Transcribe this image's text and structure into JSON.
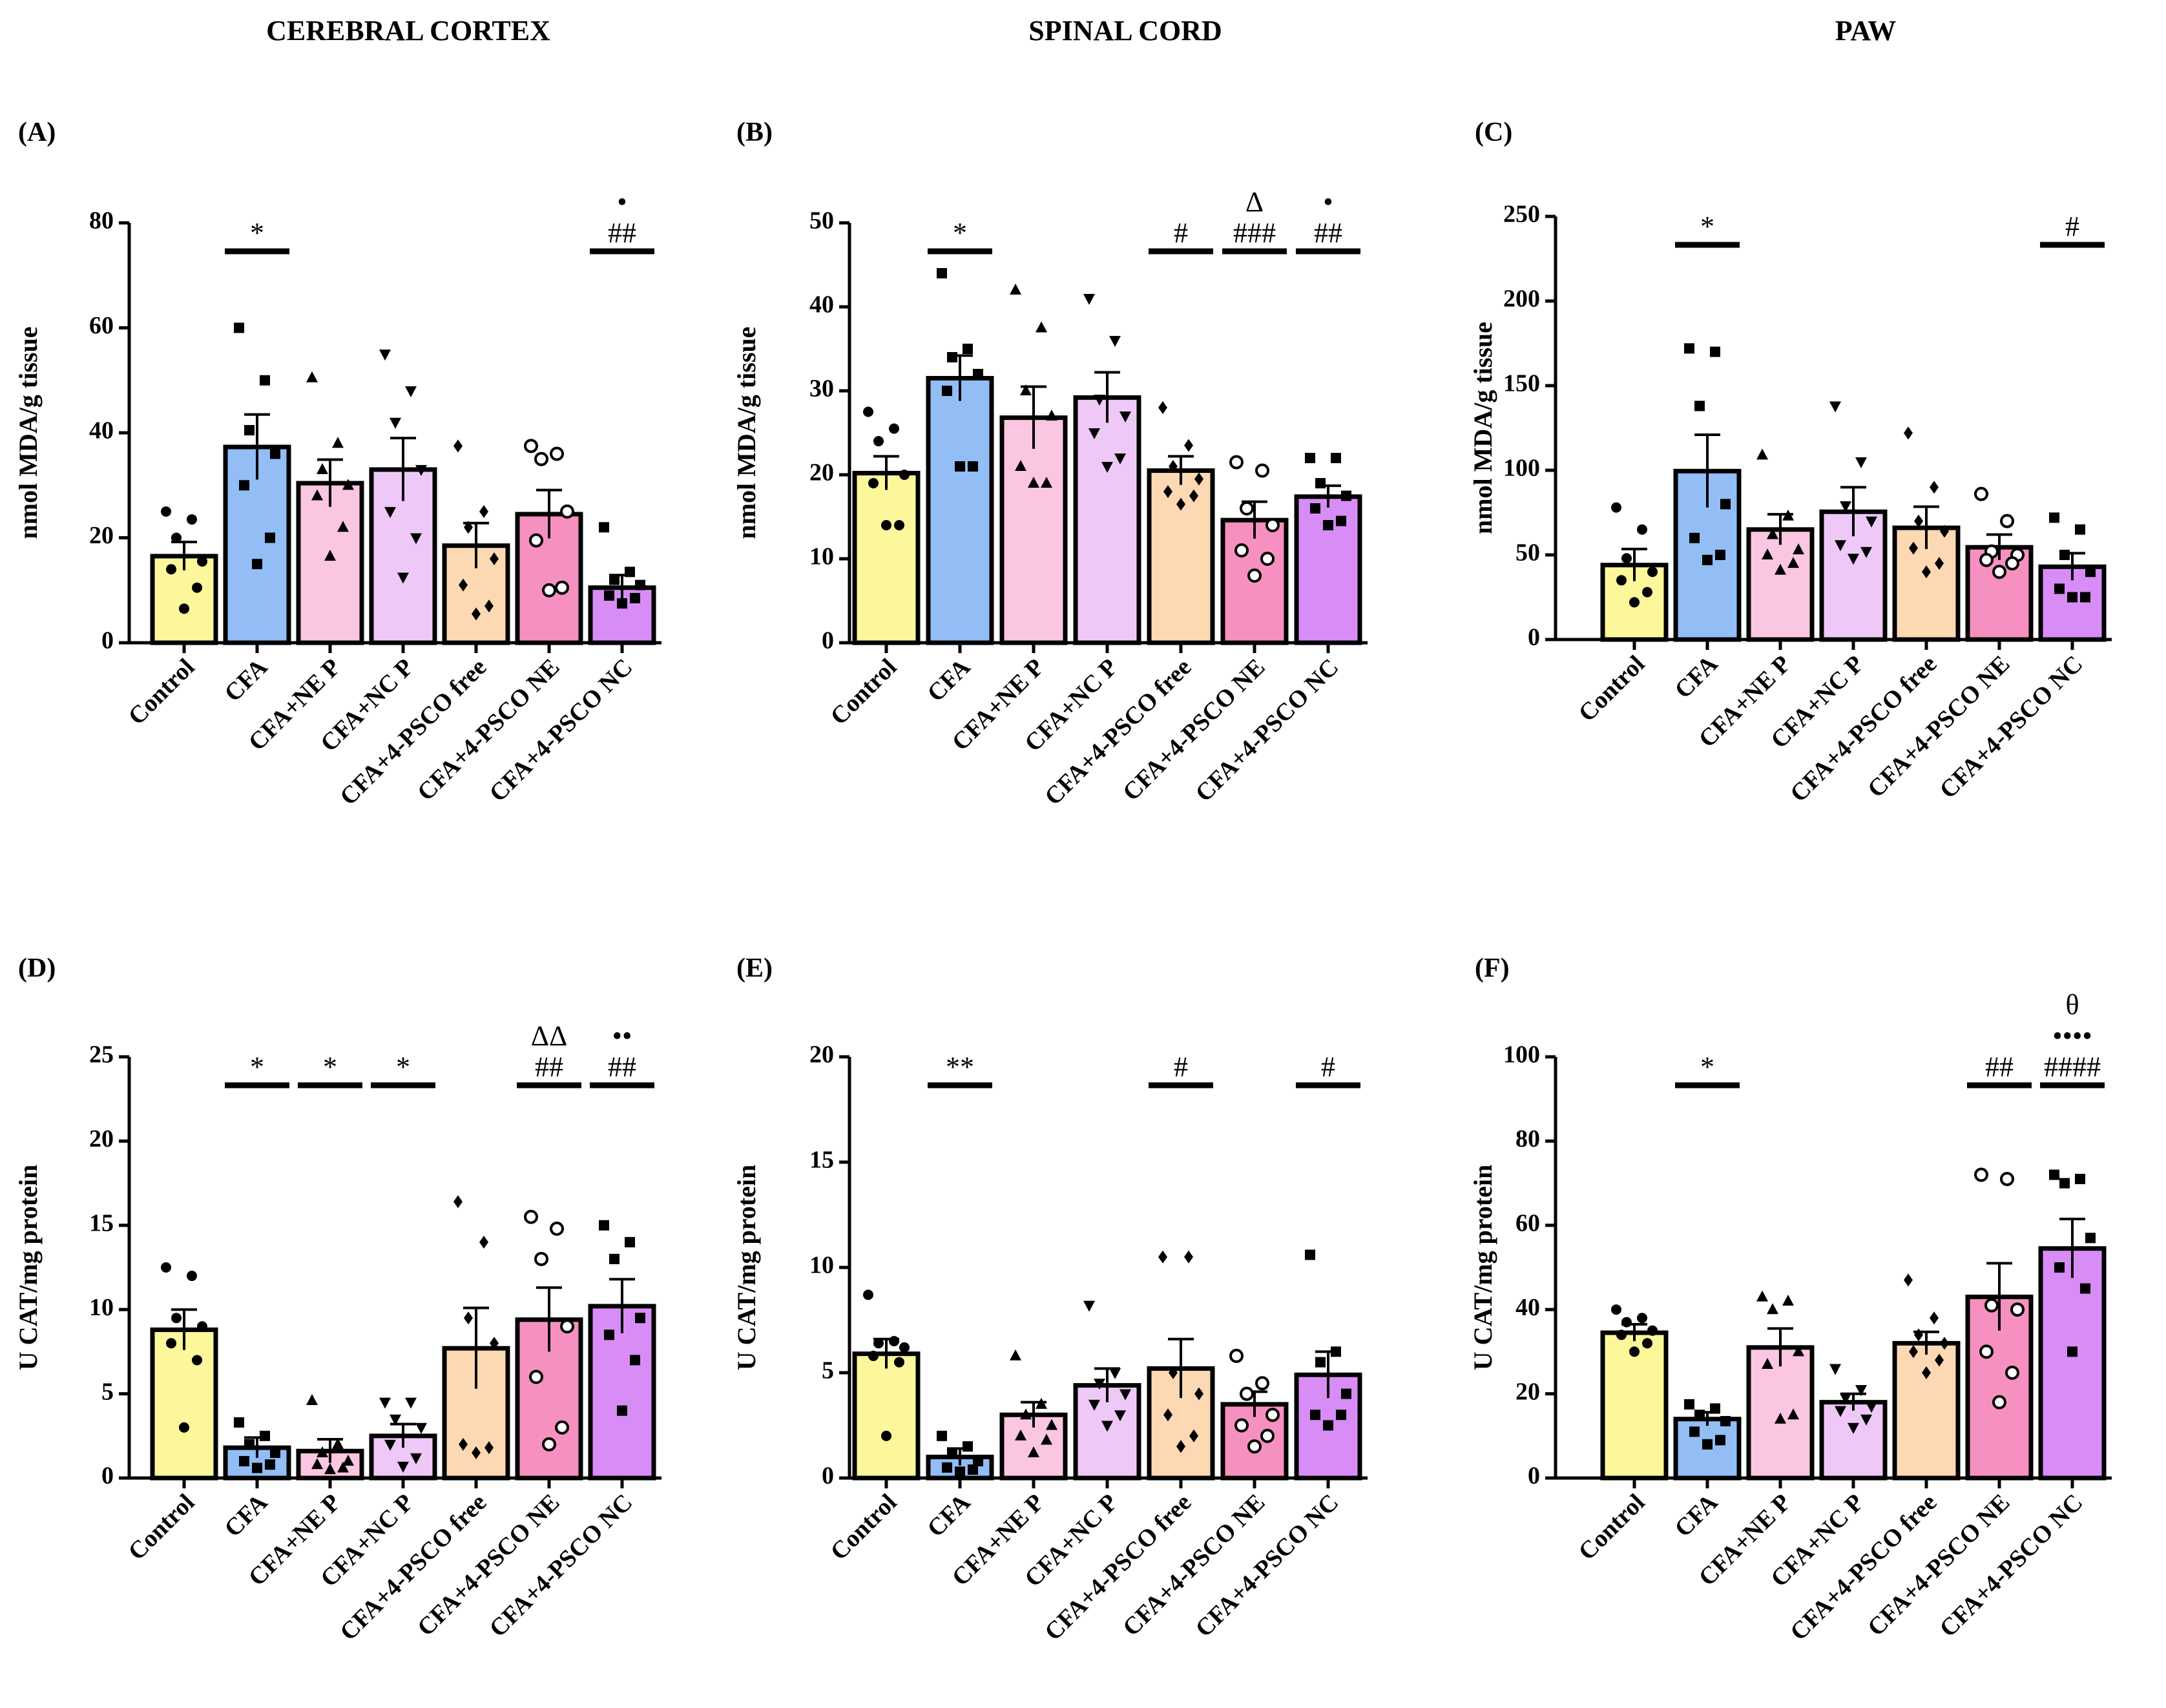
{
  "column_titles": [
    "CEREBRAL CORTEX",
    "SPINAL CORD",
    "PAW"
  ],
  "colors": [
    "#fbf79a",
    "#92bdf5",
    "#fbc6e1",
    "#eec9f7",
    "#fcd8b3",
    "#f690c0",
    "#d88cf5"
  ],
  "chart_data": [
    {
      "type": "bar",
      "panel": "(A)",
      "column": "CEREBRAL CORTEX",
      "ylabel": "nmol MDA/g tissue",
      "ylim": [
        0,
        80
      ],
      "yticks": [
        0,
        20,
        40,
        60,
        80
      ],
      "categories": [
        "Control",
        "CFA",
        "CFA+NE P",
        "CFA+NC P",
        "CFA+4-PSCO free",
        "CFA+4-PSCO NE",
        "CFA+4-PSCO NC"
      ],
      "values": [
        16.5,
        37.3,
        30.4,
        33.0,
        18.5,
        24.5,
        10.5
      ],
      "sem": [
        2.7,
        6.2,
        4.5,
        6.0,
        4.3,
        4.6,
        2.4
      ],
      "markers": [
        "circle",
        "square",
        "triangle",
        "tri-down",
        "diamond",
        "open-circle",
        "square"
      ],
      "points": [
        [
          25.0,
          23.5,
          20.0,
          15.5,
          14.0,
          10.5,
          6.5
        ],
        [
          60.0,
          50.0,
          40.5,
          36.0,
          30.0,
          20.0,
          15.0
        ],
        [
          50.5,
          38.0,
          33.0,
          30.0,
          28.0,
          22.0,
          16.5
        ],
        [
          55.0,
          48.0,
          42.0,
          33.0,
          25.0,
          20.0,
          12.5
        ],
        [
          37.5,
          25.0,
          22.0,
          16.0,
          11.0,
          7.0,
          5.5
        ],
        [
          37.5,
          36.0,
          35.0,
          25.0,
          19.5,
          10.5,
          10.0
        ],
        [
          22.0,
          13.5,
          12.0,
          11.0,
          9.0,
          8.5,
          7.5
        ]
      ],
      "sig": [
        {
          "index": 1,
          "labels": [
            "*"
          ],
          "line": true
        },
        {
          "index": 6,
          "labels": [
            "•",
            "##"
          ],
          "line": true
        }
      ]
    },
    {
      "type": "bar",
      "panel": "(B)",
      "column": "SPINAL CORD",
      "ylabel": "nmol MDA/g tissue",
      "ylim": [
        0,
        50
      ],
      "yticks": [
        0,
        10,
        20,
        30,
        40,
        50
      ],
      "categories": [
        "Control",
        "CFA",
        "CFA+NE P",
        "CFA+NC P",
        "CFA+4-PSCO free",
        "CFA+4-PSCO NE",
        "CFA+4-PSCO NC"
      ],
      "values": [
        20.2,
        31.5,
        26.8,
        29.2,
        20.5,
        14.6,
        17.4
      ],
      "sem": [
        2.0,
        2.7,
        3.7,
        3.0,
        1.7,
        2.2,
        1.3
      ],
      "markers": [
        "circle",
        "square",
        "triangle",
        "tri-down",
        "diamond",
        "open-circle",
        "square"
      ],
      "points": [
        [
          27.5,
          25.5,
          24.0,
          20.0,
          19.0,
          14.0,
          14.0
        ],
        [
          44.0,
          35.0,
          34.0,
          32.0,
          30.0,
          21.0,
          21.0
        ],
        [
          42.0,
          37.5,
          30.0,
          27.0,
          21.0,
          19.0,
          19.0
        ],
        [
          41.0,
          36.0,
          29.0,
          27.0,
          25.0,
          22.0,
          21.0
        ],
        [
          28.0,
          23.5,
          21.0,
          19.5,
          18.0,
          17.5,
          16.5
        ],
        [
          21.5,
          20.5,
          16.0,
          14.0,
          11.0,
          10.0,
          8.0
        ],
        [
          22.0,
          22.0,
          19.0,
          17.5,
          16.0,
          14.5,
          14.0
        ]
      ],
      "sig": [
        {
          "index": 1,
          "labels": [
            "*"
          ],
          "line": true
        },
        {
          "index": 4,
          "labels": [
            "#"
          ],
          "line": true
        },
        {
          "index": 5,
          "labels": [
            "Δ",
            "###"
          ],
          "line": true
        },
        {
          "index": 6,
          "labels": [
            "•",
            "##"
          ],
          "line": true
        }
      ]
    },
    {
      "type": "bar",
      "panel": "(C)",
      "column": "PAW",
      "ylabel": "nmol MDA/g tissue",
      "ylim": [
        0,
        250
      ],
      "yticks": [
        0,
        50,
        100,
        150,
        200,
        250
      ],
      "categories": [
        "Control",
        "CFA",
        "CFA+NE P",
        "CFA+NC P",
        "CFA+4-PSCO free",
        "CFA+4-PSCO NE",
        "CFA+4-PSCO NC"
      ],
      "values": [
        44.0,
        99.5,
        65.0,
        75.5,
        66.0,
        54.5,
        43.0
      ],
      "sem": [
        9.5,
        21.5,
        9.0,
        14.5,
        12.5,
        7.5,
        8.0
      ],
      "markers": [
        "circle",
        "square",
        "triangle",
        "tri-down",
        "diamond",
        "open-circle",
        "square"
      ],
      "points": [
        [
          78.0,
          65.0,
          48.0,
          40.0,
          35.0,
          28.0,
          22.0
        ],
        [
          172.0,
          170.0,
          138.0,
          80.0,
          60.0,
          50.0,
          47.0
        ],
        [
          109.0,
          73.0,
          62.0,
          53.0,
          50.0,
          45.0,
          41.0
        ],
        [
          138.0,
          105.0,
          79.0,
          70.0,
          56.0,
          52.0,
          48.0
        ],
        [
          122.0,
          90.0,
          70.0,
          64.0,
          54.0,
          45.0,
          40.0
        ],
        [
          86.0,
          70.0,
          52.0,
          50.0,
          47.0,
          45.0,
          40.0
        ],
        [
          72.0,
          65.0,
          50.0,
          40.0,
          30.0,
          25.0,
          25.0
        ]
      ],
      "sig": [
        {
          "index": 1,
          "labels": [
            "*"
          ],
          "line": true
        },
        {
          "index": 6,
          "labels": [
            "#"
          ],
          "line": true
        }
      ]
    },
    {
      "type": "bar",
      "panel": "(D)",
      "column": "CEREBRAL CORTEX",
      "ylabel": "U CAT/mg protein",
      "ylim": [
        0,
        25
      ],
      "yticks": [
        0,
        5,
        10,
        15,
        20,
        25
      ],
      "categories": [
        "Control",
        "CFA",
        "CFA+NE P",
        "CFA+NC P",
        "CFA+4-PSCO free",
        "CFA+4-PSCO NE",
        "CFA+4-PSCO NC"
      ],
      "values": [
        8.8,
        1.8,
        1.6,
        2.5,
        7.7,
        9.4,
        10.2
      ],
      "sem": [
        1.2,
        0.6,
        0.7,
        0.7,
        2.4,
        1.9,
        1.6
      ],
      "markers": [
        "circle",
        "square",
        "triangle",
        "tri-down",
        "diamond",
        "open-circle",
        "square"
      ],
      "points": [
        [
          12.5,
          12.0,
          9.5,
          9.0,
          8.0,
          7.0,
          3.0
        ],
        [
          3.3,
          2.5,
          2.0,
          1.5,
          1.0,
          0.8,
          0.6
        ],
        [
          4.6,
          2.0,
          1.5,
          1.0,
          0.8,
          0.6,
          0.5
        ],
        [
          4.5,
          4.5,
          3.5,
          3.0,
          2.0,
          1.2,
          0.7
        ],
        [
          16.4,
          14.0,
          9.5,
          8.0,
          2.0,
          1.8,
          1.5
        ],
        [
          15.5,
          14.8,
          13.0,
          9.0,
          6.0,
          3.0,
          2.0
        ],
        [
          15.0,
          14.0,
          13.0,
          9.5,
          8.5,
          7.0,
          4.0
        ]
      ],
      "sig": [
        {
          "index": 1,
          "labels": [
            "*"
          ],
          "line": true
        },
        {
          "index": 2,
          "labels": [
            "*"
          ],
          "line": true
        },
        {
          "index": 3,
          "labels": [
            "*"
          ],
          "line": true
        },
        {
          "index": 5,
          "labels": [
            "ΔΔ",
            "##"
          ],
          "line": true
        },
        {
          "index": 6,
          "labels": [
            "••",
            "##"
          ],
          "line": true
        }
      ]
    },
    {
      "type": "bar",
      "panel": "(E)",
      "column": "SPINAL CORD",
      "ylabel": "U CAT/mg protein",
      "ylim": [
        0,
        20
      ],
      "yticks": [
        0,
        5,
        10,
        15,
        20
      ],
      "categories": [
        "Control",
        "CFA",
        "CFA+NE P",
        "CFA+NC P",
        "CFA+4-PSCO free",
        "CFA+4-PSCO NE",
        "CFA+4-PSCO NC"
      ],
      "values": [
        5.9,
        1.0,
        3.0,
        4.4,
        5.2,
        3.5,
        4.9
      ],
      "sem": [
        0.7,
        0.4,
        0.6,
        0.8,
        1.4,
        0.6,
        1.1
      ],
      "markers": [
        "circle",
        "square",
        "triangle",
        "tri-down",
        "diamond",
        "open-circle",
        "square"
      ],
      "points": [
        [
          8.7,
          6.5,
          6.4,
          6.2,
          5.8,
          5.5,
          2.0
        ],
        [
          2.0,
          1.5,
          1.2,
          0.8,
          0.5,
          0.4,
          0.3
        ],
        [
          5.8,
          3.5,
          3.0,
          2.5,
          2.0,
          1.8,
          1.2
        ],
        [
          8.2,
          5.0,
          4.5,
          4.0,
          3.5,
          3.0,
          2.5
        ],
        [
          10.5,
          10.5,
          5.0,
          4.0,
          3.0,
          2.0,
          1.5
        ],
        [
          5.8,
          4.5,
          4.0,
          3.0,
          2.5,
          2.0,
          1.5
        ],
        [
          10.6,
          6.0,
          5.5,
          4.0,
          3.0,
          3.0,
          2.5
        ]
      ],
      "sig": [
        {
          "index": 1,
          "labels": [
            "**"
          ],
          "line": true
        },
        {
          "index": 4,
          "labels": [
            "#"
          ],
          "line": true
        },
        {
          "index": 6,
          "labels": [
            "#"
          ],
          "line": true
        }
      ]
    },
    {
      "type": "bar",
      "panel": "(F)",
      "column": "PAW",
      "ylabel": "U CAT/mg protein",
      "ylim": [
        0,
        100
      ],
      "yticks": [
        0,
        20,
        40,
        60,
        80,
        100
      ],
      "categories": [
        "Control",
        "CFA",
        "CFA+NE P",
        "CFA+NC P",
        "CFA+4-PSCO free",
        "CFA+4-PSCO NE",
        "CFA+4-PSCO NC"
      ],
      "values": [
        34.5,
        14.0,
        31.0,
        18.0,
        32.0,
        43.0,
        54.5
      ],
      "sem": [
        2.0,
        1.6,
        4.5,
        2.0,
        2.7,
        8.0,
        7.0
      ],
      "markers": [
        "circle",
        "square",
        "triangle",
        "tri-down",
        "diamond",
        "open-circle",
        "square"
      ],
      "points": [
        [
          40.0,
          38.0,
          37.0,
          35.0,
          34.0,
          32.0,
          30.0
        ],
        [
          17.5,
          16.5,
          15.0,
          13.5,
          11.0,
          9.0,
          8.0
        ],
        [
          43.0,
          42.0,
          40.0,
          30.0,
          27.0,
          15.0,
          14.0
        ],
        [
          26.0,
          21.0,
          19.0,
          17.0,
          16.0,
          14.0,
          12.0
        ],
        [
          47.0,
          38.0,
          34.0,
          32.0,
          30.0,
          28.0,
          25.0
        ],
        [
          72.0,
          71.0,
          41.0,
          40.0,
          30.0,
          25.0,
          18.0
        ],
        [
          72.0,
          71.0,
          70.0,
          57.0,
          50.0,
          45.0,
          30.0
        ]
      ],
      "sig": [
        {
          "index": 1,
          "labels": [
            "*"
          ],
          "line": true
        },
        {
          "index": 5,
          "labels": [
            "##"
          ],
          "line": true
        },
        {
          "index": 6,
          "labels": [
            "θ",
            "••••",
            "####"
          ],
          "line": true
        }
      ]
    }
  ]
}
